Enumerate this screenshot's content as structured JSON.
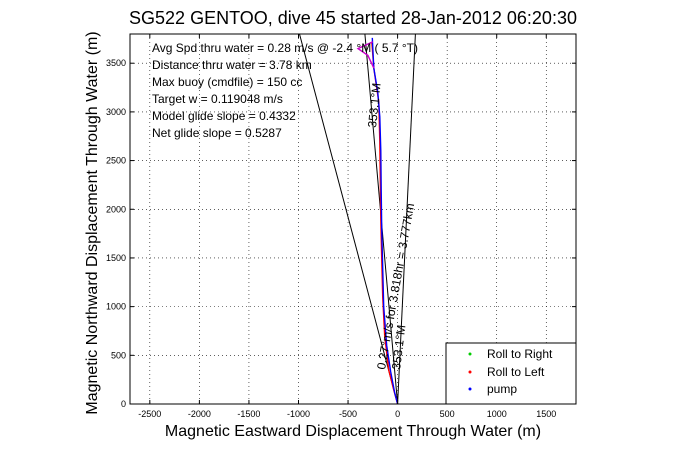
{
  "chart_data": {
    "type": "line",
    "title": "SG522 GENTOO, dive 45 started 28-Jan-2012 06:20:30",
    "xlabel": "Magnetic Eastward Displacement Through Water (m)",
    "ylabel": "Magnetic Northward Displacement Through Water (m)",
    "xlim": [
      -2700,
      1800
    ],
    "ylim": [
      0,
      3800
    ],
    "xticks": [
      -2500,
      -2000,
      -1500,
      -1000,
      -500,
      0,
      500,
      1000,
      1500
    ],
    "yticks": [
      0,
      500,
      1000,
      1500,
      2000,
      2500,
      3000,
      3500
    ],
    "grid": true,
    "stats": [
      "Avg Spd thru water = 0.28 m/s @  -2.4  °M (  5.7 °T)",
      "Distance thru water = 3.78 km",
      "Max buoy (cmdfile) = 150 cc",
      "Target w = 0.119048 m/s",
      "Model glide slope = 0.4332",
      "Net glide slope = 0.5287"
    ],
    "annotations": {
      "heading_top": "353.1°M",
      "track_label": "0.27°m/s for 3.818hr = 3.777km",
      "heading_bottom": "353.1°M"
    },
    "legend": {
      "placement": "bottom-right",
      "entries": [
        {
          "name": "Roll to Right",
          "color": "#00cc00",
          "marker": "dot"
        },
        {
          "name": "Roll to Left",
          "color": "#ff0000",
          "marker": "dot"
        },
        {
          "name": "pump",
          "color": "#0000ff",
          "marker": "dot"
        }
      ]
    },
    "series": [
      {
        "role": "cone-left",
        "color": "#000000",
        "points": [
          [
            0,
            0
          ],
          [
            -990,
            3800
          ]
        ]
      },
      {
        "role": "cone-right",
        "color": "#000000",
        "points": [
          [
            0,
            0
          ],
          [
            180,
            3800
          ]
        ]
      },
      {
        "role": "heading-line",
        "color": "#000000",
        "points": [
          [
            0,
            0
          ],
          [
            -330,
            3800
          ]
        ]
      },
      {
        "role": "track-red",
        "color": "#ff0000",
        "points": [
          [
            0,
            0
          ],
          [
            -40,
            150
          ],
          [
            -90,
            350
          ],
          [
            -130,
            700
          ],
          [
            -150,
            1100
          ],
          [
            -160,
            1500
          ],
          [
            -170,
            1900
          ],
          [
            -175,
            2300
          ],
          [
            -180,
            2700
          ],
          [
            -190,
            3100
          ],
          [
            -240,
            3450
          ],
          [
            -260,
            3720
          ]
        ]
      },
      {
        "role": "track-blue",
        "color": "#0000ff",
        "points": [
          [
            0,
            0
          ],
          [
            -30,
            120
          ],
          [
            -70,
            330
          ],
          [
            -110,
            600
          ],
          [
            -140,
            1000
          ],
          [
            -150,
            1400
          ],
          [
            -160,
            1800
          ],
          [
            -165,
            2200
          ],
          [
            -170,
            2600
          ],
          [
            -180,
            2950
          ],
          [
            -200,
            3200
          ],
          [
            -240,
            3450
          ],
          [
            -255,
            3760
          ]
        ]
      },
      {
        "role": "track-magenta",
        "color": "#cc00cc",
        "points": [
          [
            -240,
            3450
          ],
          [
            -300,
            3580
          ],
          [
            -400,
            3650
          ],
          [
            -250,
            3720
          ]
        ]
      }
    ]
  }
}
